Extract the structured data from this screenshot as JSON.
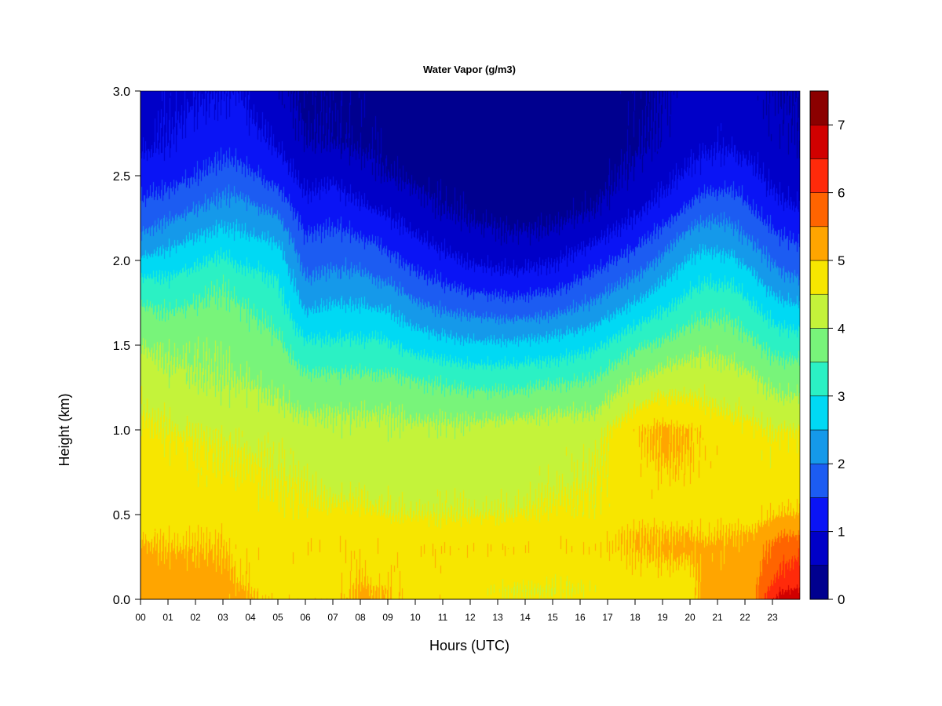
{
  "chart_data": {
    "type": "heatmap",
    "title": "Water Vapor (g/m3)",
    "xlabel": "Hours (UTC)",
    "ylabel": "Height (km)",
    "x_tick_labels": [
      "00",
      "01",
      "02",
      "03",
      "04",
      "05",
      "06",
      "07",
      "08",
      "09",
      "10",
      "11",
      "12",
      "13",
      "14",
      "15",
      "16",
      "17",
      "18",
      "19",
      "20",
      "21",
      "22",
      "23"
    ],
    "y_tick_labels": [
      "0.0",
      "0.5",
      "1.0",
      "1.5",
      "2.0",
      "2.5",
      "3.0"
    ],
    "y_ticks": [
      0.0,
      0.5,
      1.0,
      1.5,
      2.0,
      2.5,
      3.0
    ],
    "xlim": [
      0,
      24
    ],
    "ylim": [
      0,
      3.0
    ],
    "colorbar": {
      "levels": [
        0,
        0.5,
        1,
        1.5,
        2,
        2.5,
        3,
        3.5,
        4,
        4.5,
        5,
        5.5,
        6,
        6.5,
        7,
        7.5
      ],
      "colors": [
        "#00008f",
        "#0000c8",
        "#0a14f5",
        "#1c5cf2",
        "#1599ea",
        "#00d9f4",
        "#2bf1c4",
        "#78f47a",
        "#c4f33a",
        "#f7e600",
        "#ffa500",
        "#ff6400",
        "#ff2a0a",
        "#d10000",
        "#8b0000"
      ],
      "tick_values": [
        0,
        1,
        2,
        3,
        4,
        5,
        6,
        7
      ],
      "tick_labels": [
        "0",
        "1",
        "2",
        "3",
        "4",
        "5",
        "6",
        "7"
      ],
      "vmin": 0,
      "vmax": 7.5
    },
    "heights_km": [
      0.0,
      0.05,
      0.1,
      0.3,
      0.4,
      0.5,
      0.7,
      0.9,
      1.0,
      1.1,
      1.3,
      1.5,
      1.7,
      1.9,
      2.1,
      2.3,
      2.5,
      2.7,
      3.0
    ],
    "profiles": [
      {
        "hour": 0.0,
        "values": [
          5.2,
          5.2,
          5.2,
          5.1,
          4.9,
          4.9,
          4.8,
          4.8,
          4.6,
          4.5,
          4.3,
          4.0,
          3.6,
          3.0,
          2.2,
          1.6,
          1.2,
          0.9,
          0.8
        ]
      },
      {
        "hour": 1.0,
        "values": [
          5.2,
          5.2,
          5.2,
          5.0,
          4.9,
          4.8,
          4.7,
          4.6,
          4.5,
          4.4,
          4.1,
          3.9,
          3.5,
          3.0,
          2.4,
          1.8,
          1.3,
          1.0,
          0.9
        ]
      },
      {
        "hour": 3.0,
        "values": [
          5.2,
          5.2,
          5.2,
          5.0,
          4.9,
          4.8,
          4.6,
          4.5,
          4.4,
          4.2,
          4.0,
          3.9,
          3.7,
          3.4,
          2.8,
          2.2,
          1.7,
          1.3,
          1.0
        ]
      },
      {
        "hour": 3.5,
        "values": [
          5.1,
          5.1,
          5.0,
          4.9,
          4.8,
          4.7,
          4.6,
          4.5,
          4.4,
          4.2,
          4.0,
          3.8,
          3.6,
          3.2,
          2.7,
          2.2,
          1.7,
          1.3,
          1.0
        ]
      },
      {
        "hour": 5.0,
        "values": [
          4.9,
          4.8,
          4.8,
          4.8,
          4.7,
          4.6,
          4.5,
          4.4,
          4.3,
          4.1,
          3.9,
          3.6,
          3.3,
          3.0,
          2.5,
          1.9,
          1.3,
          0.9,
          0.6
        ]
      },
      {
        "hour": 6.0,
        "values": [
          4.9,
          4.8,
          4.8,
          4.9,
          4.8,
          4.6,
          4.5,
          4.3,
          4.2,
          4.0,
          3.6,
          3.1,
          2.5,
          2.0,
          1.6,
          1.2,
          0.8,
          0.5,
          0.4
        ]
      },
      {
        "hour": 7.0,
        "values": [
          4.9,
          4.8,
          4.8,
          4.9,
          4.8,
          4.6,
          4.3,
          4.2,
          4.1,
          4.0,
          3.6,
          3.1,
          2.6,
          2.1,
          1.7,
          1.3,
          0.9,
          0.5,
          0.4
        ]
      },
      {
        "hour": 8.0,
        "values": [
          5.1,
          5.1,
          5.0,
          4.9,
          4.8,
          4.6,
          4.4,
          4.2,
          4.1,
          4.0,
          3.6,
          3.1,
          2.6,
          2.1,
          1.6,
          1.1,
          0.7,
          0.4,
          0.4
        ]
      },
      {
        "hour": 9.0,
        "values": [
          5.0,
          5.0,
          4.9,
          4.9,
          4.8,
          4.5,
          4.3,
          4.2,
          4.1,
          4.0,
          3.6,
          3.1,
          2.5,
          1.9,
          1.4,
          0.9,
          0.5,
          0.4,
          0.3
        ]
      },
      {
        "hour": 10.0,
        "values": [
          4.8,
          4.8,
          4.8,
          4.9,
          4.7,
          4.5,
          4.3,
          4.2,
          4.1,
          3.9,
          3.5,
          2.8,
          2.2,
          1.6,
          1.1,
          0.7,
          0.4,
          0.3,
          0.3
        ]
      },
      {
        "hour": 11.0,
        "values": [
          4.9,
          4.8,
          4.8,
          4.9,
          4.7,
          4.5,
          4.3,
          4.2,
          4.1,
          3.9,
          3.4,
          2.7,
          2.0,
          1.4,
          0.9,
          0.5,
          0.3,
          0.3,
          0.2
        ]
      },
      {
        "hour": 12.0,
        "values": [
          4.8,
          4.7,
          4.7,
          4.9,
          4.7,
          4.5,
          4.3,
          4.2,
          4.1,
          3.9,
          3.3,
          2.6,
          1.9,
          1.2,
          0.7,
          0.4,
          0.3,
          0.2,
          0.2
        ]
      },
      {
        "hour": 13.5,
        "values": [
          4.6,
          4.5,
          4.6,
          4.9,
          4.7,
          4.5,
          4.3,
          4.2,
          4.2,
          3.9,
          3.3,
          2.6,
          1.8,
          1.1,
          0.6,
          0.3,
          0.2,
          0.2,
          0.1
        ]
      },
      {
        "hour": 15.0,
        "values": [
          4.6,
          4.5,
          4.6,
          4.9,
          4.8,
          4.6,
          4.4,
          4.3,
          4.2,
          4.0,
          3.4,
          2.7,
          1.9,
          1.2,
          0.7,
          0.3,
          0.2,
          0.2,
          0.1
        ]
      },
      {
        "hour": 16.5,
        "values": [
          4.7,
          4.6,
          4.6,
          4.9,
          4.8,
          4.6,
          4.5,
          4.4,
          4.3,
          4.0,
          3.5,
          2.9,
          2.2,
          1.6,
          1.0,
          0.5,
          0.3,
          0.2,
          0.3
        ]
      },
      {
        "hour": 18.0,
        "values": [
          4.8,
          4.8,
          4.8,
          5.0,
          5.0,
          4.8,
          4.8,
          4.9,
          4.9,
          4.6,
          4.0,
          3.4,
          2.7,
          2.0,
          1.4,
          0.9,
          0.6,
          0.4,
          0.4
        ]
      },
      {
        "hour": 19.0,
        "values": [
          4.8,
          4.8,
          4.8,
          5.1,
          5.0,
          4.8,
          4.9,
          5.1,
          5.1,
          4.8,
          4.2,
          3.6,
          3.0,
          2.4,
          1.8,
          1.2,
          0.8,
          0.6,
          0.5
        ]
      },
      {
        "hour": 20.0,
        "values": [
          4.8,
          4.8,
          4.8,
          5.1,
          5.0,
          4.8,
          4.9,
          5.0,
          5.0,
          4.7,
          4.3,
          3.8,
          3.3,
          2.8,
          2.3,
          1.6,
          1.1,
          0.8,
          0.7
        ]
      },
      {
        "hour": 20.5,
        "values": [
          5.2,
          5.2,
          5.2,
          5.1,
          4.9,
          4.8,
          4.8,
          4.9,
          4.9,
          4.6,
          4.3,
          3.9,
          3.4,
          2.9,
          2.4,
          1.8,
          1.2,
          0.9,
          0.7
        ]
      },
      {
        "hour": 21.5,
        "values": [
          5.2,
          5.2,
          5.2,
          5.1,
          5.0,
          4.8,
          4.8,
          4.8,
          4.7,
          4.5,
          4.2,
          3.8,
          3.4,
          2.9,
          2.3,
          1.8,
          1.3,
          0.9,
          0.7
        ]
      },
      {
        "hour": 22.3,
        "values": [
          5.3,
          5.3,
          5.3,
          5.2,
          5.0,
          4.8,
          4.8,
          4.7,
          4.6,
          4.4,
          4.1,
          3.6,
          3.1,
          2.6,
          2.0,
          1.5,
          1.1,
          0.8,
          0.7
        ]
      },
      {
        "hour": 22.8,
        "values": [
          6.2,
          6.0,
          5.8,
          5.5,
          5.2,
          4.9,
          4.7,
          4.6,
          4.5,
          4.3,
          3.9,
          3.4,
          2.9,
          2.3,
          1.8,
          1.3,
          0.9,
          0.6,
          0.6
        ]
      },
      {
        "hour": 23.3,
        "values": [
          6.7,
          6.5,
          6.2,
          5.8,
          5.4,
          5.0,
          4.7,
          4.6,
          4.5,
          4.2,
          3.8,
          3.3,
          2.7,
          2.1,
          1.6,
          1.1,
          0.8,
          0.6,
          0.5
        ]
      },
      {
        "hour": 24.0,
        "values": [
          6.8,
          6.6,
          6.3,
          5.9,
          5.4,
          5.0,
          4.7,
          4.6,
          4.5,
          4.2,
          3.8,
          3.3,
          2.6,
          2.0,
          1.5,
          1.0,
          0.7,
          0.5,
          0.5
        ]
      }
    ]
  }
}
